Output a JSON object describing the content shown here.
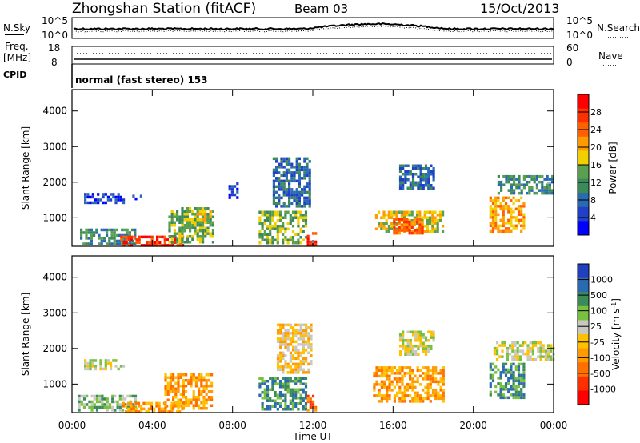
{
  "header": {
    "station": "Zhongshan Station (fitACF)",
    "beam": "Beam 03",
    "date": "15/Oct/2013"
  },
  "status_panels": {
    "nsky_label": "N.Sky",
    "nsky_top": "10^5",
    "nsky_bottom": "10^0",
    "nsearch_label": "N.Search",
    "freq_label": "Freq.",
    "freq_unit": "[MHz]",
    "freq_top": "18",
    "freq_bottom": "8",
    "nave_label": "Nave",
    "nave_top": "60",
    "nave_bottom": "0",
    "cpid_label": "CPID",
    "cpid_text": "normal (fast stereo) 153"
  },
  "colors": {
    "power": [
      "#0000ff",
      "#2040c8",
      "#2a6ab0",
      "#3c8a5a",
      "#5aa050",
      "#f0d000",
      "#ff9a00",
      "#ff6000",
      "#ff3000",
      "#ff0000"
    ],
    "velocity": [
      "#2040c0",
      "#2a6ab0",
      "#3a8a5a",
      "#7ac040",
      "#c8c8c0",
      "#ffc000",
      "#ff9a00",
      "#ff7000",
      "#ff3000",
      "#ff0000"
    ]
  },
  "chart_data": [
    {
      "type": "heatmap",
      "name": "power",
      "x_ticks": [
        "00:00",
        "04:00",
        "08:00",
        "12:00",
        "16:00",
        "20:00",
        "00:00"
      ],
      "y_ticks": [
        "1000",
        "2000",
        "3000",
        "4000"
      ],
      "ylabel": "Slant Range [km]",
      "ylim": [
        200,
        4600
      ],
      "xlim_hours": [
        0,
        24
      ],
      "colorbar_label": "Power [dB]",
      "colorbar_ticks": [
        "4",
        "8",
        "12",
        "16",
        "20",
        "24",
        "28"
      ],
      "regions": [
        {
          "t0": 0.4,
          "t1": 3.2,
          "r0": 250,
          "r1": 700,
          "level": 3
        },
        {
          "t0": 2.4,
          "t1": 5.5,
          "r0": 250,
          "r1": 500,
          "level": 8
        },
        {
          "t0": 0.6,
          "t1": 2.6,
          "r0": 1450,
          "r1": 1700,
          "level": 1
        },
        {
          "t0": 3.0,
          "t1": 3.4,
          "r0": 1500,
          "r1": 1650,
          "level": 1
        },
        {
          "t0": 4.8,
          "t1": 7.0,
          "r0": 300,
          "r1": 1300,
          "level": 4
        },
        {
          "t0": 6.2,
          "t1": 6.9,
          "r0": 900,
          "r1": 1300,
          "level": 5
        },
        {
          "t0": 7.8,
          "t1": 8.3,
          "r0": 1600,
          "r1": 2000,
          "level": 1
        },
        {
          "t0": 9.3,
          "t1": 11.6,
          "r0": 300,
          "r1": 1200,
          "level": 4
        },
        {
          "t0": 10.0,
          "t1": 11.9,
          "r0": 1300,
          "r1": 2700,
          "level": 2
        },
        {
          "t0": 11.7,
          "t1": 12.1,
          "r0": 250,
          "r1": 600,
          "level": 8
        },
        {
          "t0": 15.1,
          "t1": 18.5,
          "r0": 600,
          "r1": 1200,
          "level": 5
        },
        {
          "t0": 16.0,
          "t1": 17.5,
          "r0": 600,
          "r1": 1000,
          "level": 7
        },
        {
          "t0": 16.3,
          "t1": 18.0,
          "r0": 1800,
          "r1": 2500,
          "level": 2
        },
        {
          "t0": 20.8,
          "t1": 22.5,
          "r0": 600,
          "r1": 1600,
          "level": 6
        },
        {
          "t0": 21.2,
          "t1": 24.0,
          "r0": 1700,
          "r1": 2200,
          "level": 3
        }
      ]
    },
    {
      "type": "heatmap",
      "name": "velocity",
      "x_ticks": [
        "00:00",
        "04:00",
        "08:00",
        "12:00",
        "16:00",
        "20:00",
        "00:00"
      ],
      "y_ticks": [
        "1000",
        "2000",
        "3000",
        "4000"
      ],
      "ylabel": "Slant Range [km]",
      "xlabel": "Time UT",
      "ylim": [
        200,
        4600
      ],
      "xlim_hours": [
        0,
        24
      ],
      "colorbar_label": "Velocity [m s^-1]",
      "colorbar_ticks": [
        "1000",
        "500",
        "100",
        "25",
        "-25",
        "-100",
        "-500",
        "-1000"
      ],
      "regions": [
        {
          "t0": 0.3,
          "t1": 3.2,
          "r0": 250,
          "r1": 700,
          "level": 3
        },
        {
          "t0": 2.5,
          "t1": 5.5,
          "r0": 250,
          "r1": 500,
          "level": 6
        },
        {
          "t0": 0.6,
          "t1": 2.6,
          "r0": 1450,
          "r1": 1700,
          "level": 4
        },
        {
          "t0": 4.6,
          "t1": 7.0,
          "r0": 300,
          "r1": 1300,
          "level": 6
        },
        {
          "t0": 9.3,
          "t1": 11.6,
          "r0": 300,
          "r1": 1200,
          "level": 2
        },
        {
          "t0": 10.2,
          "t1": 11.9,
          "r0": 1300,
          "r1": 2700,
          "level": 5
        },
        {
          "t0": 11.7,
          "t1": 12.2,
          "r0": 250,
          "r1": 700,
          "level": 7
        },
        {
          "t0": 15.0,
          "t1": 18.5,
          "r0": 500,
          "r1": 1500,
          "level": 6
        },
        {
          "t0": 16.3,
          "t1": 18.0,
          "r0": 1800,
          "r1": 2500,
          "level": 4
        },
        {
          "t0": 20.8,
          "t1": 22.5,
          "r0": 600,
          "r1": 1600,
          "level": 2
        },
        {
          "t0": 21.0,
          "t1": 24.0,
          "r0": 1700,
          "r1": 2200,
          "level": 4
        }
      ]
    }
  ]
}
